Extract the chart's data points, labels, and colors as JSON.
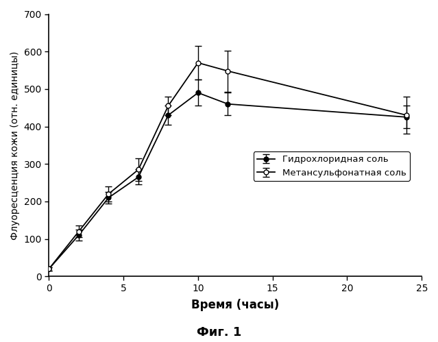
{
  "hcl_x": [
    0,
    2,
    4,
    6,
    8,
    10,
    12,
    24
  ],
  "hcl_y": [
    20,
    110,
    210,
    265,
    430,
    490,
    460,
    425
  ],
  "hcl_yerr": [
    5,
    15,
    15,
    20,
    25,
    35,
    30,
    30
  ],
  "mes_x": [
    0,
    2,
    4,
    6,
    8,
    10,
    12,
    24
  ],
  "mes_y": [
    20,
    120,
    220,
    285,
    455,
    570,
    548,
    430
  ],
  "mes_yerr": [
    5,
    15,
    20,
    30,
    25,
    45,
    55,
    50
  ],
  "xlabel": "Время (часы)",
  "ylabel": "Флуоресценция кожи (отн. единицы)",
  "legend_hcl": "Гидрохлоридная соль",
  "legend_mes": "Метансульфонатная соль",
  "caption": "Фиг. 1",
  "xlim": [
    0,
    25
  ],
  "ylim": [
    0,
    700
  ],
  "xticks": [
    0,
    5,
    10,
    15,
    20,
    25
  ],
  "yticks": [
    0,
    100,
    200,
    300,
    400,
    500,
    600,
    700
  ],
  "background_color": "#ffffff"
}
